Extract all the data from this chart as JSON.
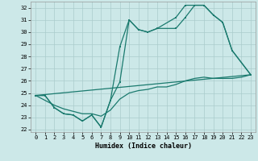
{
  "xlabel": "Humidex (Indice chaleur)",
  "bg_color": "#cce8e8",
  "grid_color": "#aacccc",
  "line_color": "#1a7a6e",
  "xlim": [
    -0.5,
    23.5
  ],
  "ylim": [
    21.8,
    32.5
  ],
  "yticks": [
    22,
    23,
    24,
    25,
    26,
    27,
    28,
    29,
    30,
    31,
    32
  ],
  "xticks": [
    0,
    1,
    2,
    3,
    4,
    5,
    6,
    7,
    8,
    9,
    10,
    11,
    12,
    13,
    14,
    15,
    16,
    17,
    18,
    19,
    20,
    21,
    22,
    23
  ],
  "curve1_x": [
    0,
    1,
    2,
    3,
    4,
    5,
    6,
    7,
    8,
    9,
    10,
    11,
    12,
    13,
    15,
    16,
    17,
    18,
    19,
    20,
    21,
    23
  ],
  "curve1_y": [
    24.8,
    24.8,
    23.8,
    23.3,
    23.2,
    22.7,
    23.2,
    22.2,
    24.4,
    25.9,
    31.0,
    30.2,
    30.0,
    30.3,
    30.3,
    31.2,
    32.2,
    32.2,
    31.4,
    30.8,
    28.5,
    26.5
  ],
  "curve2_x": [
    0,
    1,
    2,
    3,
    4,
    5,
    6,
    7,
    8,
    9,
    10,
    11,
    12,
    13,
    15,
    16,
    17,
    18,
    19,
    20,
    21,
    23
  ],
  "curve2_y": [
    24.8,
    24.8,
    23.8,
    23.3,
    23.2,
    22.7,
    23.2,
    22.2,
    24.4,
    28.8,
    31.0,
    30.2,
    30.0,
    30.3,
    31.2,
    32.2,
    32.2,
    32.2,
    31.4,
    30.8,
    28.5,
    26.5
  ],
  "curve3_x": [
    0,
    23
  ],
  "curve3_y": [
    24.8,
    26.5
  ],
  "curve4_x": [
    0,
    2,
    3,
    4,
    5,
    6,
    7,
    8,
    9,
    10,
    11,
    12,
    13,
    14,
    15,
    16,
    17,
    18,
    19,
    20,
    21,
    22,
    23
  ],
  "curve4_y": [
    24.8,
    24.0,
    23.7,
    23.5,
    23.3,
    23.3,
    23.1,
    23.6,
    24.5,
    25.0,
    25.2,
    25.3,
    25.5,
    25.5,
    25.7,
    26.0,
    26.2,
    26.3,
    26.2,
    26.2,
    26.2,
    26.3,
    26.5
  ]
}
